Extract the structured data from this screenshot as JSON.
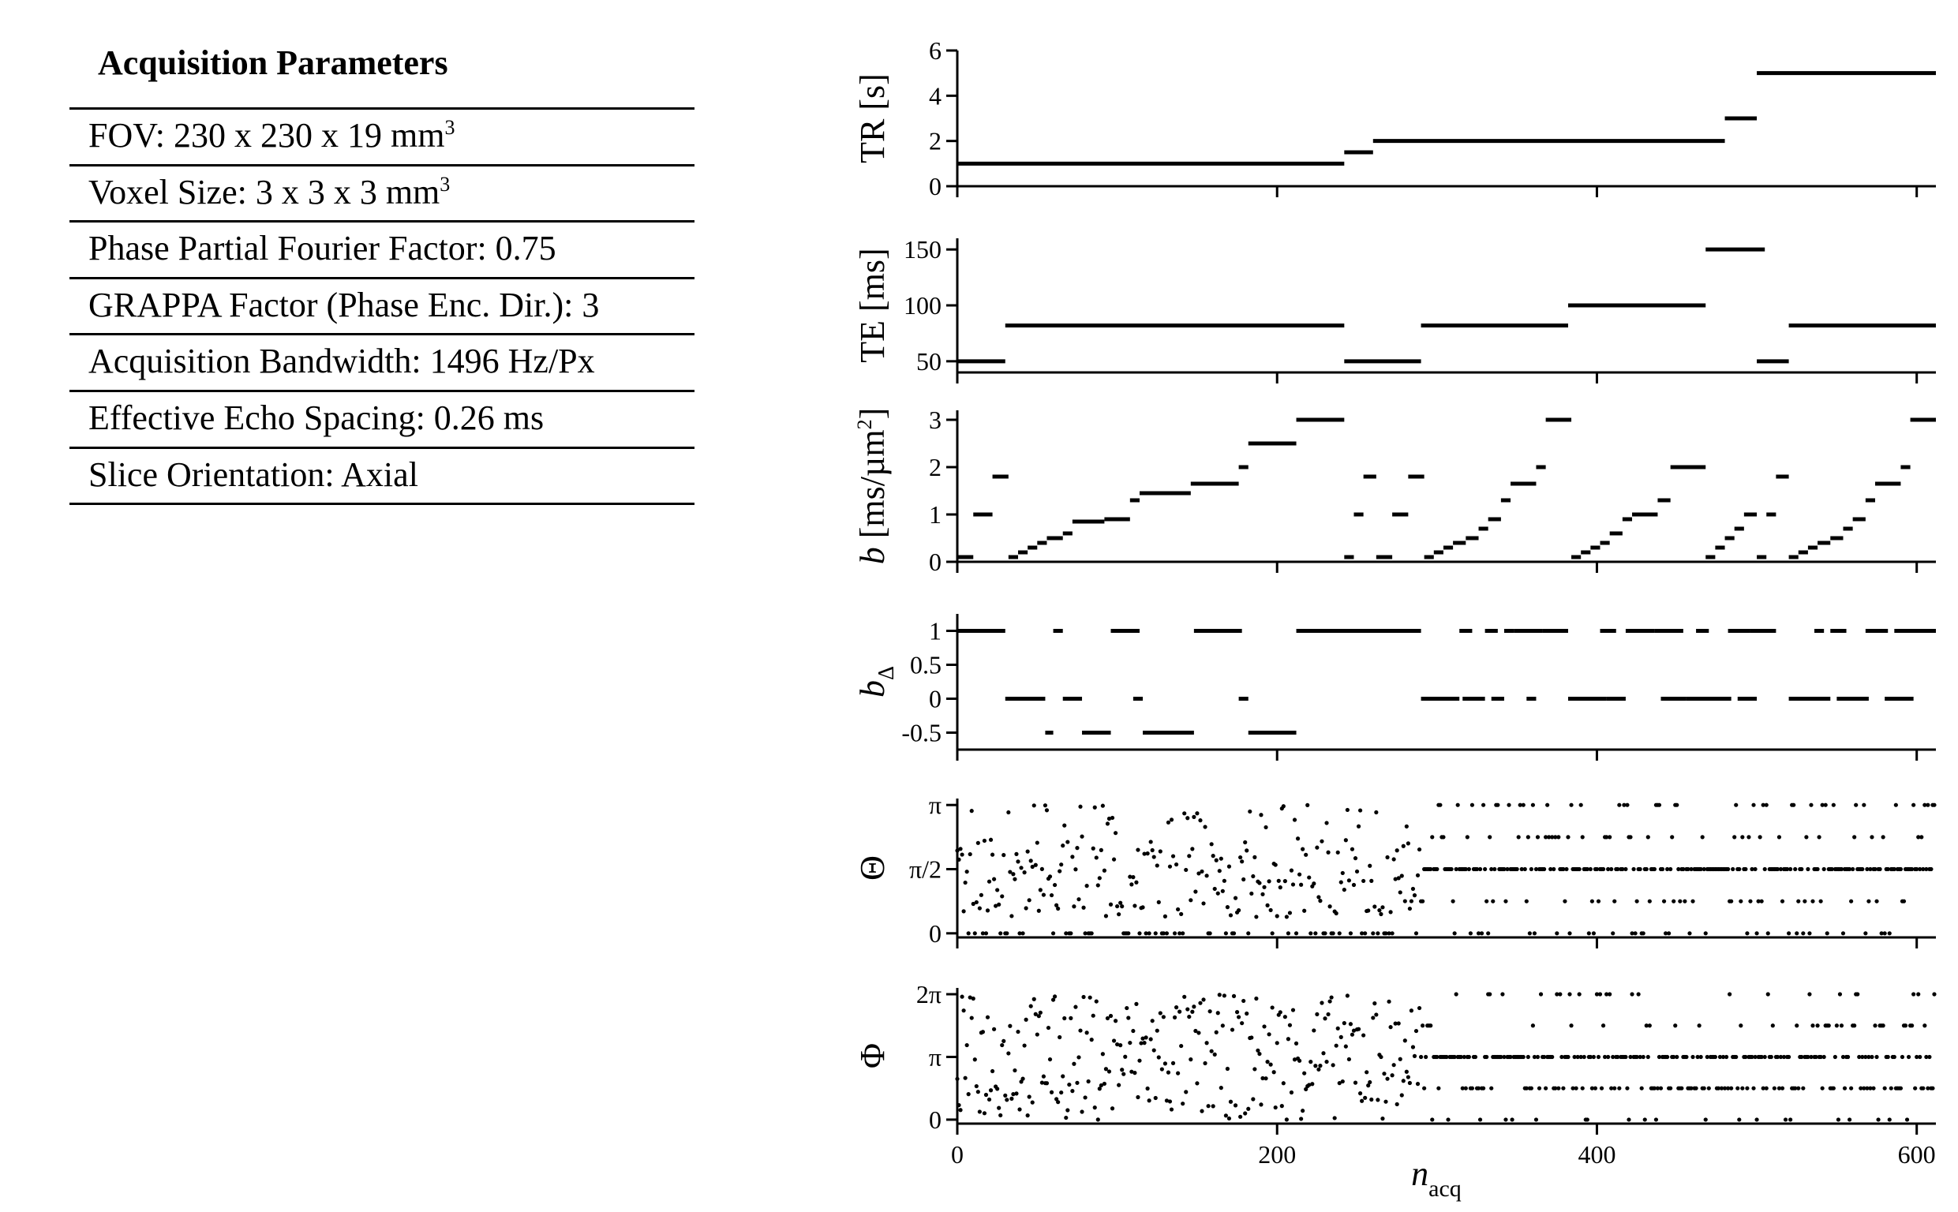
{
  "table": {
    "title": "Acquisition Parameters",
    "rows": [
      {
        "text": "FOV: 230 x 230 x 19 mm",
        "sup": "3"
      },
      {
        "text": "Voxel Size: 3 x 3 x 3 mm",
        "sup": "3"
      },
      {
        "text": "Phase Partial Fourier Factor: 0.75",
        "sup": ""
      },
      {
        "text": "GRAPPA Factor (Phase Enc. Dir.): 3",
        "sup": ""
      },
      {
        "text": "Acquisition Bandwidth: 1496 Hz/Px",
        "sup": ""
      },
      {
        "text": "Effective Echo Spacing: 0.26 ms",
        "sup": ""
      },
      {
        "text": "Slice Orientation: Axial",
        "sup": ""
      }
    ]
  },
  "chart_data": {
    "type": "scatter",
    "xlabel": {
      "main": "n",
      "sub": "acq"
    },
    "xlim": [
      0,
      612
    ],
    "xticks": [
      0,
      200,
      400,
      600
    ],
    "xtick_labels": [
      "0",
      "200",
      "400",
      "600"
    ],
    "panels": [
      {
        "id": "tr",
        "style": "segments",
        "ylabel": "TR [s]",
        "ylim": [
          0,
          6
        ],
        "yticks": [
          0,
          2,
          4,
          6
        ],
        "ytick_labels": [
          "0",
          "2",
          "4",
          "6"
        ],
        "segments": [
          [
            0,
            242,
            1
          ],
          [
            242,
            260,
            1.5
          ],
          [
            260,
            480,
            2
          ],
          [
            480,
            500,
            3
          ],
          [
            500,
            612,
            5
          ]
        ]
      },
      {
        "id": "te",
        "style": "segments",
        "ylabel": "TE [ms]",
        "ylim": [
          40,
          160
        ],
        "yticks": [
          50,
          100,
          150
        ],
        "ytick_labels": [
          "50",
          "100",
          "150"
        ],
        "segments": [
          [
            0,
            30,
            50
          ],
          [
            30,
            242,
            82
          ],
          [
            242,
            290,
            50
          ],
          [
            290,
            382,
            82
          ],
          [
            382,
            468,
            100
          ],
          [
            468,
            505,
            150
          ],
          [
            500,
            520,
            50
          ],
          [
            520,
            612,
            82
          ]
        ]
      },
      {
        "id": "b",
        "style": "segments",
        "ylabel": "b [ms/µm²]",
        "ylabel_parts": [
          "b",
          " [ms/µm",
          "2",
          "]"
        ],
        "ylim": [
          0,
          3.2
        ],
        "yticks": [
          0,
          1,
          2,
          3
        ],
        "ytick_labels": [
          "0",
          "1",
          "2",
          "3"
        ],
        "segments": [
          [
            0,
            10,
            0.1
          ],
          [
            10,
            22,
            1
          ],
          [
            22,
            32,
            1.8
          ],
          [
            32,
            38,
            0.1
          ],
          [
            38,
            44,
            0.2
          ],
          [
            44,
            50,
            0.3
          ],
          [
            50,
            56,
            0.4
          ],
          [
            56,
            66,
            0.5
          ],
          [
            66,
            72,
            0.6
          ],
          [
            72,
            92,
            0.85
          ],
          [
            92,
            108,
            0.9
          ],
          [
            108,
            114,
            1.3
          ],
          [
            114,
            146,
            1.45
          ],
          [
            146,
            176,
            1.65
          ],
          [
            176,
            182,
            2
          ],
          [
            182,
            212,
            2.5
          ],
          [
            212,
            242,
            3
          ],
          [
            242,
            248,
            0.1
          ],
          [
            248,
            254,
            1
          ],
          [
            254,
            262,
            1.8
          ],
          [
            262,
            272,
            0.1
          ],
          [
            272,
            282,
            1
          ],
          [
            282,
            292,
            1.8
          ],
          [
            292,
            298,
            0.1
          ],
          [
            298,
            304,
            0.2
          ],
          [
            304,
            310,
            0.3
          ],
          [
            310,
            318,
            0.4
          ],
          [
            318,
            326,
            0.5
          ],
          [
            326,
            332,
            0.7
          ],
          [
            332,
            340,
            0.9
          ],
          [
            340,
            346,
            1.3
          ],
          [
            346,
            362,
            1.65
          ],
          [
            362,
            368,
            2
          ],
          [
            368,
            384,
            3
          ],
          [
            384,
            390,
            0.1
          ],
          [
            390,
            396,
            0.2
          ],
          [
            396,
            402,
            0.3
          ],
          [
            402,
            408,
            0.4
          ],
          [
            408,
            416,
            0.6
          ],
          [
            416,
            422,
            0.9
          ],
          [
            422,
            438,
            1
          ],
          [
            438,
            446,
            1.3
          ],
          [
            446,
            468,
            2
          ],
          [
            468,
            474,
            0.1
          ],
          [
            474,
            480,
            0.3
          ],
          [
            480,
            486,
            0.5
          ],
          [
            486,
            492,
            0.7
          ],
          [
            492,
            500,
            1
          ],
          [
            500,
            506,
            0.1
          ],
          [
            506,
            512,
            1
          ],
          [
            512,
            520,
            1.8
          ],
          [
            520,
            526,
            0.1
          ],
          [
            526,
            532,
            0.2
          ],
          [
            532,
            538,
            0.3
          ],
          [
            538,
            546,
            0.4
          ],
          [
            546,
            554,
            0.5
          ],
          [
            554,
            560,
            0.7
          ],
          [
            560,
            568,
            0.9
          ],
          [
            568,
            574,
            1.3
          ],
          [
            574,
            590,
            1.65
          ],
          [
            590,
            596,
            2
          ],
          [
            596,
            612,
            3
          ]
        ]
      },
      {
        "id": "bdelta",
        "style": "segments",
        "ylabel": "bΔ",
        "ylabel_parts": [
          "b",
          "Δ"
        ],
        "ylim": [
          -0.75,
          1.25
        ],
        "yticks": [
          -0.5,
          0,
          0.5,
          1
        ],
        "ytick_labels": [
          "-0.5",
          "0",
          "0.5",
          "1"
        ],
        "segments": [
          [
            0,
            30,
            1
          ],
          [
            30,
            55,
            0
          ],
          [
            55,
            60,
            -0.5
          ],
          [
            60,
            66,
            1
          ],
          [
            66,
            78,
            0
          ],
          [
            78,
            96,
            -0.5
          ],
          [
            96,
            114,
            1
          ],
          [
            110,
            116,
            0
          ],
          [
            116,
            148,
            -0.5
          ],
          [
            148,
            178,
            1
          ],
          [
            176,
            182,
            0
          ],
          [
            182,
            212,
            -0.5
          ],
          [
            212,
            290,
            1
          ],
          [
            290,
            314,
            0
          ],
          [
            314,
            322,
            1
          ],
          [
            316,
            330,
            0
          ],
          [
            330,
            338,
            1
          ],
          [
            334,
            342,
            0
          ],
          [
            342,
            348,
            1
          ],
          [
            348,
            366,
            1
          ],
          [
            356,
            362,
            0
          ],
          [
            366,
            382,
            1
          ],
          [
            382,
            406,
            0
          ],
          [
            402,
            412,
            1
          ],
          [
            406,
            418,
            0
          ],
          [
            418,
            436,
            1
          ],
          [
            436,
            454,
            1
          ],
          [
            440,
            456,
            0
          ],
          [
            456,
            484,
            0
          ],
          [
            462,
            470,
            1
          ],
          [
            482,
            496,
            1
          ],
          [
            496,
            512,
            1
          ],
          [
            488,
            500,
            0
          ],
          [
            520,
            546,
            0
          ],
          [
            536,
            542,
            1
          ],
          [
            546,
            556,
            1
          ],
          [
            550,
            570,
            0
          ],
          [
            568,
            582,
            1
          ],
          [
            580,
            598,
            0
          ],
          [
            586,
            612,
            1
          ]
        ]
      },
      {
        "id": "theta",
        "style": "dots",
        "ylabel": "Θ",
        "ylim": [
          -0.1,
          3.3
        ],
        "yticks": [
          0,
          1.5708,
          3.1416
        ],
        "ytick_labels": [
          "0",
          "π/2",
          "π"
        ],
        "levels": [
          0,
          0.7854,
          1.5708,
          2.3562,
          3.1416
        ]
      },
      {
        "id": "phi",
        "style": "dots",
        "ylabel": "Φ",
        "ylim": [
          -0.2,
          6.6
        ],
        "yticks": [
          0,
          3.1416,
          6.2832
        ],
        "ytick_labels": [
          "0",
          "π",
          "2π"
        ],
        "levels": [
          0,
          1.5708,
          3.1416,
          4.7124,
          6.2832
        ]
      }
    ]
  }
}
